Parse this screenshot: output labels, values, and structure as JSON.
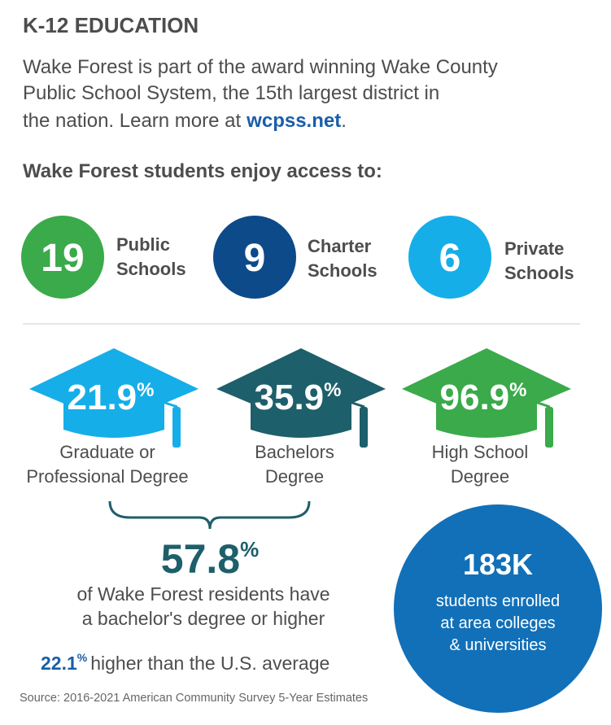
{
  "header": {
    "title": "K-12 EDUCATION",
    "intro_lines": [
      "Wake Forest is part of the award winning Wake County",
      "Public School System, the 15th largest district in",
      "the nation. Learn more at"
    ],
    "link": "wcpss.net",
    "link_end": "."
  },
  "access": {
    "heading": "Wake Forest students enjoy access to:",
    "schools": [
      {
        "count": "19",
        "label_lines": [
          "Public",
          "Schools"
        ]
      },
      {
        "count": "9",
        "label_lines": [
          "Charter",
          "Schools"
        ]
      },
      {
        "count": "6",
        "label_lines": [
          "Private",
          "Schools"
        ]
      }
    ]
  },
  "degrees": [
    {
      "value": "21.9",
      "unit": "%",
      "label_lines": [
        "Graduate or",
        "Professional Degree"
      ]
    },
    {
      "value": "35.9",
      "unit": "%",
      "label_lines": [
        "Bachelors",
        "Degree"
      ]
    },
    {
      "value": "96.9",
      "unit": "%",
      "label_lines": [
        "High School",
        "Degree"
      ]
    }
  ],
  "summary": {
    "value": "57.8",
    "unit": "%",
    "lines": [
      "of Wake Forest residents have",
      "a bachelor's degree or higher"
    ],
    "comparison": {
      "value": "22.1",
      "unit": "%",
      "text": "higher than the U.S. average"
    }
  },
  "enrollment": {
    "value": "183K",
    "lines": [
      "students enrolled",
      "at area colleges",
      "& universities"
    ]
  },
  "source": "Source: 2016-2021 American Community Survey 5-Year Estimates"
}
